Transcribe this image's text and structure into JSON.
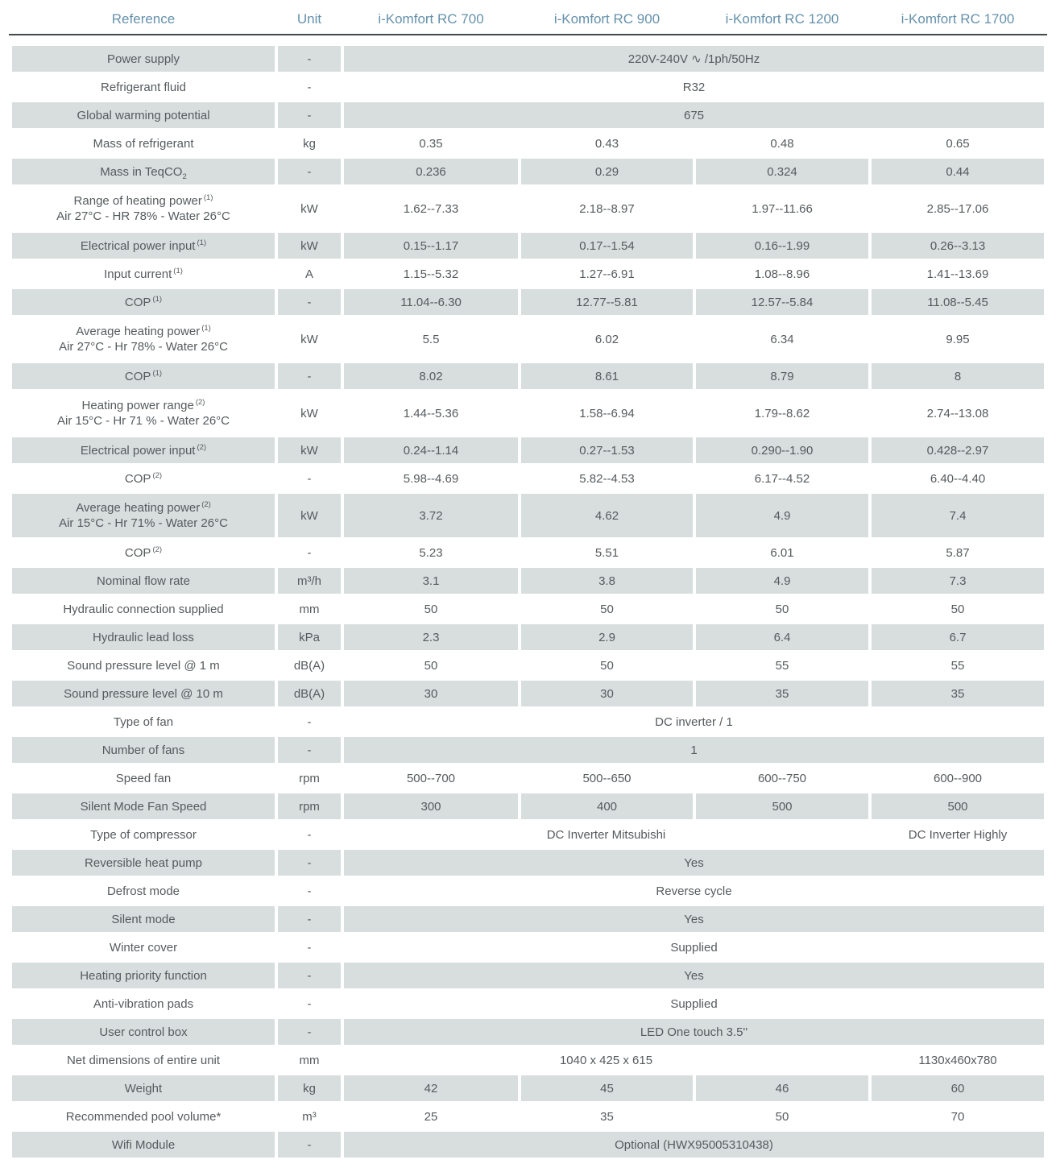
{
  "table": {
    "colors": {
      "header_text": "#6591ab",
      "header_rule": "#43484b",
      "row_shade": "#d7dedd",
      "body_text": "#565b5e"
    },
    "columns": [
      "Reference",
      "Unit",
      "i-Komfort RC 700",
      "i-Komfort RC 900",
      "i-Komfort RC 1200",
      "i-Komfort RC 1700"
    ],
    "rows": [
      {
        "label": "Power supply",
        "unit": "-",
        "span": "220V-240V ∿ /1ph/50Hz"
      },
      {
        "label": "Refrigerant fluid",
        "unit": "-",
        "span": "R32"
      },
      {
        "label": "Global warming potential",
        "unit": "-",
        "span": "675"
      },
      {
        "label": "Mass of refrigerant",
        "unit": "kg",
        "values": [
          "0.35",
          "0.43",
          "0.48",
          "0.65"
        ]
      },
      {
        "label": "Mass in TeqCO",
        "label_sub": "2",
        "unit": "-",
        "values": [
          "0.236",
          "0.29",
          "0.324",
          "0.44"
        ]
      },
      {
        "label": "Range of heating power",
        "label_sup": "(1)",
        "label_line2": "Air 27°C - HR 78% - Water 26°C",
        "unit": "kW",
        "values": [
          "1.62--7.33",
          "2.18--8.97",
          "1.97--11.66",
          "2.85--17.06"
        ]
      },
      {
        "label": "Electrical power input",
        "label_sup": "(1)",
        "unit": "kW",
        "values": [
          "0.15--1.17",
          "0.17--1.54",
          "0.16--1.99",
          "0.26--3.13"
        ]
      },
      {
        "label": "Input current",
        "label_sup": "(1)",
        "unit": "A",
        "values": [
          "1.15--5.32",
          "1.27--6.91",
          "1.08--8.96",
          "1.41--13.69"
        ]
      },
      {
        "label": "COP",
        "label_sup": "(1)",
        "unit": "-",
        "values": [
          "11.04--6.30",
          "12.77--5.81",
          "12.57--5.84",
          "11.08--5.45"
        ]
      },
      {
        "label": "Average heating power",
        "label_sup": "(1)",
        "label_line2": "Air 27°C - Hr 78% - Water 26°C",
        "unit": "kW",
        "values": [
          "5.5",
          "6.02",
          "6.34",
          "9.95"
        ]
      },
      {
        "label": "COP",
        "label_sup": "(1)",
        "unit": "-",
        "values": [
          "8.02",
          "8.61",
          "8.79",
          "8"
        ]
      },
      {
        "label": "Heating power range",
        "label_sup": "(2)",
        "label_line2": "Air 15°C - Hr 71 % - Water 26°C",
        "unit": "kW",
        "values": [
          "1.44--5.36",
          "1.58--6.94",
          "1.79--8.62",
          "2.74--13.08"
        ]
      },
      {
        "label": "Electrical power input",
        "label_sup": "(2)",
        "unit": "kW",
        "values": [
          "0.24--1.14",
          "0.27--1.53",
          "0.290--1.90",
          "0.428--2.97"
        ]
      },
      {
        "label": "COP",
        "label_sup": "(2)",
        "unit": "-",
        "values": [
          "5.98--4.69",
          "5.82--4.53",
          "6.17--4.52",
          "6.40--4.40"
        ]
      },
      {
        "label": "Average heating power",
        "label_sup": "(2)",
        "label_line2": "Air 15°C - Hr 71% - Water 26°C",
        "unit": "kW",
        "values": [
          "3.72",
          "4.62",
          "4.9",
          "7.4"
        ]
      },
      {
        "label": "COP",
        "label_sup": "(2)",
        "unit": "-",
        "values": [
          "5.23",
          "5.51",
          "6.01",
          "5.87"
        ]
      },
      {
        "label": "Nominal flow rate",
        "unit": "m³/h",
        "values": [
          "3.1",
          "3.8",
          "4.9",
          "7.3"
        ]
      },
      {
        "label": "Hydraulic connection supplied",
        "unit": "mm",
        "values": [
          "50",
          "50",
          "50",
          "50"
        ]
      },
      {
        "label": "Hydraulic lead loss",
        "unit": "kPa",
        "values": [
          "2.3",
          "2.9",
          "6.4",
          "6.7"
        ]
      },
      {
        "label": "Sound pressure level @ 1 m",
        "unit": "dB(A)",
        "values": [
          "50",
          "50",
          "55",
          "55"
        ]
      },
      {
        "label": "Sound pressure level @ 10 m",
        "unit": "dB(A)",
        "values": [
          "30",
          "30",
          "35",
          "35"
        ]
      },
      {
        "label": "Type of fan",
        "unit": "-",
        "span": "DC inverter / 1"
      },
      {
        "label": "Number of fans",
        "unit": "-",
        "span": "1"
      },
      {
        "label": "Speed fan",
        "unit": "rpm",
        "values": [
          "500--700",
          "500--650",
          "600--750",
          "600--900"
        ]
      },
      {
        "label": "Silent Mode Fan Speed",
        "unit": "rpm",
        "values": [
          "300",
          "400",
          "500",
          "500"
        ]
      },
      {
        "label": "Type of compressor",
        "unit": "-",
        "span3": "DC Inverter Mitsubishi",
        "last": "DC Inverter Highly"
      },
      {
        "label": "Reversible heat pump",
        "unit": "-",
        "span": "Yes"
      },
      {
        "label": "Defrost mode",
        "unit": "-",
        "span": "Reverse cycle"
      },
      {
        "label": "Silent mode",
        "unit": "-",
        "span": "Yes"
      },
      {
        "label": "Winter cover",
        "unit": "-",
        "span": "Supplied"
      },
      {
        "label": "Heating priority function",
        "unit": "-",
        "span": "Yes"
      },
      {
        "label": "Anti-vibration pads",
        "unit": "-",
        "span": "Supplied"
      },
      {
        "label": "User control box",
        "unit": "-",
        "span": "LED One touch 3.5''"
      },
      {
        "label": "Net dimensions of entire unit",
        "unit": "mm",
        "span3": "1040 x 425 x 615",
        "last": "1130x460x780"
      },
      {
        "label": "Weight",
        "unit": "kg",
        "values": [
          "42",
          "45",
          "46",
          "60"
        ]
      },
      {
        "label": "Recommended pool volume*",
        "unit": "m³",
        "values": [
          "25",
          "35",
          "50",
          "70"
        ]
      },
      {
        "label": "Wifi Module",
        "unit": "-",
        "span": "Optional (HWX95005310438)"
      }
    ]
  }
}
